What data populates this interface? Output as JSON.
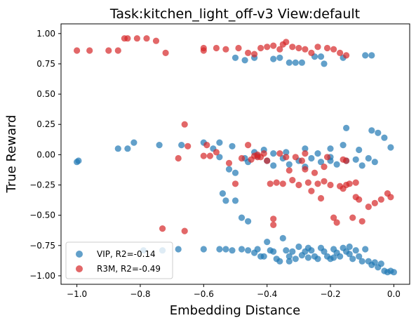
{
  "chart_data": {
    "type": "scatter",
    "title": "Task:kitchen_light_off-v3 View:default",
    "xlabel": "Embedding Distance",
    "ylabel": "True Reward",
    "xlim": [
      -1.05,
      0.05
    ],
    "ylim": [
      -1.07,
      1.08
    ],
    "xticks": [
      {
        "value": -1.0,
        "label": "−1.0"
      },
      {
        "value": -0.8,
        "label": "−0.8"
      },
      {
        "value": -0.6,
        "label": "−0.6"
      },
      {
        "value": -0.4,
        "label": "−0.4"
      },
      {
        "value": -0.2,
        "label": "−0.2"
      },
      {
        "value": 0.0,
        "label": "0.0"
      }
    ],
    "yticks": [
      {
        "value": 1.0,
        "label": "1.00"
      },
      {
        "value": 0.75,
        "label": "0.75"
      },
      {
        "value": 0.5,
        "label": "0.50"
      },
      {
        "value": 0.25,
        "label": "0.25"
      },
      {
        "value": 0.0,
        "label": "0.00"
      },
      {
        "value": -0.25,
        "label": "−0.25"
      },
      {
        "value": -0.5,
        "label": "−0.50"
      },
      {
        "value": -0.75,
        "label": "−0.75"
      },
      {
        "value": -1.0,
        "label": "−1.00"
      }
    ],
    "grid": false,
    "legend_position": "lower-left",
    "series": [
      {
        "name": "VIP, R2=-0.14",
        "color": "#1f77b4",
        "points": [
          [
            -1.0,
            -0.06
          ],
          [
            -0.995,
            -0.05
          ],
          [
            -0.87,
            0.05
          ],
          [
            -0.84,
            0.05
          ],
          [
            -0.82,
            0.1
          ],
          [
            -0.74,
            0.08
          ],
          [
            -0.67,
            0.08
          ],
          [
            -0.6,
            0.1
          ],
          [
            -0.57,
            0.05
          ],
          [
            -0.55,
            0.1
          ],
          [
            -0.51,
            0.07
          ],
          [
            -0.44,
            0.02
          ],
          [
            -0.41,
            0.04
          ],
          [
            -0.38,
            0.01
          ],
          [
            -0.34,
            0.02
          ],
          [
            -0.28,
            0.05
          ],
          [
            -0.24,
            0.01
          ],
          [
            -0.2,
            0.05
          ],
          [
            -0.16,
            0.08
          ],
          [
            -0.15,
            0.22
          ],
          [
            -0.11,
            0.04
          ],
          [
            -0.07,
            0.2
          ],
          [
            -0.05,
            0.18
          ],
          [
            -0.03,
            0.14
          ],
          [
            -0.01,
            0.06
          ],
          [
            -0.55,
            -0.02
          ],
          [
            -0.52,
            -0.12
          ],
          [
            -0.5,
            -0.15
          ],
          [
            -0.47,
            -0.03
          ],
          [
            -0.46,
            -0.06
          ],
          [
            -0.43,
            -0.01
          ],
          [
            -0.4,
            -0.05
          ],
          [
            -0.38,
            -0.09
          ],
          [
            -0.35,
            -0.03
          ],
          [
            -0.33,
            -0.08
          ],
          [
            -0.3,
            -0.05
          ],
          [
            -0.28,
            -0.1
          ],
          [
            -0.26,
            -0.03
          ],
          [
            -0.23,
            -0.06
          ],
          [
            -0.2,
            -0.02
          ],
          [
            -0.18,
            -0.08
          ],
          [
            -0.15,
            -0.05
          ],
          [
            -0.12,
            -0.04
          ],
          [
            -0.1,
            -0.09
          ],
          [
            -0.08,
            -0.03
          ],
          [
            -0.06,
            -0.06
          ],
          [
            -0.54,
            -0.32
          ],
          [
            -0.53,
            -0.38
          ],
          [
            -0.5,
            -0.38
          ],
          [
            -0.48,
            -0.52
          ],
          [
            -0.46,
            -0.55
          ],
          [
            -0.2,
            -0.05
          ],
          [
            -0.5,
            0.8
          ],
          [
            -0.47,
            0.78
          ],
          [
            -0.44,
            0.8
          ],
          [
            -0.38,
            0.79
          ],
          [
            -0.36,
            0.8
          ],
          [
            -0.33,
            0.76
          ],
          [
            -0.31,
            0.76
          ],
          [
            -0.29,
            0.76
          ],
          [
            -0.25,
            0.81
          ],
          [
            -0.23,
            0.81
          ],
          [
            -0.22,
            0.75
          ],
          [
            -0.16,
            0.8
          ],
          [
            -0.09,
            0.82
          ],
          [
            -0.07,
            0.82
          ],
          [
            -0.79,
            -0.79
          ],
          [
            -0.73,
            -0.79
          ],
          [
            -0.68,
            -0.78
          ],
          [
            -0.6,
            -0.78
          ],
          [
            -0.55,
            -0.78
          ],
          [
            -0.53,
            -0.78
          ],
          [
            -0.51,
            -0.79
          ],
          [
            -0.48,
            -0.78
          ],
          [
            -0.43,
            -0.78
          ],
          [
            -0.42,
            -0.84
          ],
          [
            -0.41,
            -0.84
          ],
          [
            -0.4,
            -0.72
          ],
          [
            -0.39,
            -0.79
          ],
          [
            -0.38,
            -0.8
          ],
          [
            -0.37,
            -0.86
          ],
          [
            -0.36,
            -0.88
          ],
          [
            -0.35,
            -0.69
          ],
          [
            -0.34,
            -0.79
          ],
          [
            -0.33,
            -0.84
          ],
          [
            -0.32,
            -0.8
          ],
          [
            -0.31,
            -0.86
          ],
          [
            -0.3,
            -0.76
          ],
          [
            -0.29,
            -0.83
          ],
          [
            -0.28,
            -0.8
          ],
          [
            -0.27,
            -0.85
          ],
          [
            -0.26,
            -0.79
          ],
          [
            -0.25,
            -0.84
          ],
          [
            -0.24,
            -0.86
          ],
          [
            -0.23,
            -0.77
          ],
          [
            -0.22,
            -0.8
          ],
          [
            -0.21,
            -0.84
          ],
          [
            -0.2,
            -0.86
          ],
          [
            -0.19,
            -0.78
          ],
          [
            -0.18,
            -0.81
          ],
          [
            -0.17,
            -0.84
          ],
          [
            -0.16,
            -0.77
          ],
          [
            -0.15,
            -0.8
          ],
          [
            -0.14,
            -0.82
          ],
          [
            -0.13,
            -0.86
          ],
          [
            -0.12,
            -0.79
          ],
          [
            -0.11,
            -0.84
          ],
          [
            -0.1,
            -0.88
          ],
          [
            -0.09,
            -0.78
          ],
          [
            -0.08,
            -0.88
          ],
          [
            -0.07,
            -0.91
          ],
          [
            -0.06,
            -0.89
          ],
          [
            -0.05,
            -0.93
          ],
          [
            -0.04,
            -0.9
          ],
          [
            -0.03,
            -0.96
          ],
          [
            -0.02,
            -0.97
          ],
          [
            -0.01,
            -0.96
          ],
          [
            0.0,
            -0.97
          ],
          [
            -0.46,
            -0.79
          ],
          [
            -0.44,
            -0.81
          ],
          [
            -0.33,
            -0.88
          ],
          [
            -0.27,
            -0.77
          ],
          [
            -0.19,
            -0.85
          ],
          [
            -0.14,
            -0.76
          ]
        ]
      },
      {
        "name": "R3M, R2=-0.49",
        "color": "#d62728",
        "points": [
          [
            -1.0,
            0.86
          ],
          [
            -0.96,
            0.86
          ],
          [
            -0.9,
            0.86
          ],
          [
            -0.87,
            0.86
          ],
          [
            -0.85,
            0.96
          ],
          [
            -0.84,
            0.96
          ],
          [
            -0.81,
            0.96
          ],
          [
            -0.78,
            0.96
          ],
          [
            -0.75,
            0.94
          ],
          [
            -0.72,
            0.84
          ],
          [
            -0.6,
            0.88
          ],
          [
            -0.6,
            0.86
          ],
          [
            -0.56,
            0.88
          ],
          [
            -0.53,
            0.87
          ],
          [
            -0.49,
            0.88
          ],
          [
            -0.46,
            0.84
          ],
          [
            -0.44,
            0.83
          ],
          [
            -0.42,
            0.88
          ],
          [
            -0.4,
            0.89
          ],
          [
            -0.38,
            0.9
          ],
          [
            -0.36,
            0.87
          ],
          [
            -0.35,
            0.91
          ],
          [
            -0.34,
            0.93
          ],
          [
            -0.32,
            0.89
          ],
          [
            -0.3,
            0.88
          ],
          [
            -0.28,
            0.87
          ],
          [
            -0.26,
            0.84
          ],
          [
            -0.24,
            0.89
          ],
          [
            -0.21,
            0.88
          ],
          [
            -0.19,
            0.87
          ],
          [
            -0.17,
            0.84
          ],
          [
            -0.15,
            0.82
          ],
          [
            -0.73,
            -0.61
          ],
          [
            -0.66,
            -0.63
          ],
          [
            -0.68,
            -0.03
          ],
          [
            -0.66,
            0.25
          ],
          [
            -0.65,
            0.07
          ],
          [
            -0.6,
            -0.01
          ],
          [
            -0.59,
            0.08
          ],
          [
            -0.58,
            -0.01
          ],
          [
            -0.56,
            0.02
          ],
          [
            -0.52,
            -0.07
          ],
          [
            -0.5,
            -0.24
          ],
          [
            -0.48,
            -0.03
          ],
          [
            -0.46,
            0.08
          ],
          [
            -0.44,
            -0.01
          ],
          [
            -0.43,
            0.0
          ],
          [
            -0.42,
            -0.02
          ],
          [
            -0.41,
            0.01
          ],
          [
            -0.4,
            -0.05
          ],
          [
            -0.39,
            -0.24
          ],
          [
            -0.38,
            -0.53
          ],
          [
            -0.38,
            -0.58
          ],
          [
            -0.37,
            -0.23
          ],
          [
            -0.36,
            0.01
          ],
          [
            -0.35,
            -0.24
          ],
          [
            -0.34,
            -0.02
          ],
          [
            -0.33,
            -0.13
          ],
          [
            -0.32,
            -0.21
          ],
          [
            -0.31,
            -0.02
          ],
          [
            -0.3,
            -0.25
          ],
          [
            -0.29,
            -0.05
          ],
          [
            -0.28,
            -0.12
          ],
          [
            -0.27,
            -0.23
          ],
          [
            -0.26,
            -0.3
          ],
          [
            -0.25,
            -0.15
          ],
          [
            -0.24,
            -0.24
          ],
          [
            -0.23,
            -0.36
          ],
          [
            -0.22,
            -0.1
          ],
          [
            -0.21,
            -0.02
          ],
          [
            -0.2,
            -0.25
          ],
          [
            -0.19,
            -0.52
          ],
          [
            -0.18,
            -0.56
          ],
          [
            -0.17,
            -0.26
          ],
          [
            -0.16,
            -0.28
          ],
          [
            -0.15,
            -0.25
          ],
          [
            -0.14,
            -0.24
          ],
          [
            -0.13,
            -0.52
          ],
          [
            -0.12,
            -0.35
          ],
          [
            -0.11,
            -0.37
          ],
          [
            -0.1,
            -0.55
          ],
          [
            -0.08,
            -0.43
          ],
          [
            -0.06,
            -0.4
          ],
          [
            -0.04,
            -0.37
          ],
          [
            -0.02,
            -0.32
          ],
          [
            -0.01,
            -0.35
          ],
          [
            -0.45,
            -0.04
          ],
          [
            -0.43,
            -0.02
          ],
          [
            -0.28,
            0.01
          ],
          [
            -0.22,
            -0.22
          ],
          [
            -0.16,
            -0.04
          ],
          [
            -0.12,
            -0.23
          ],
          [
            -0.15,
            -0.05
          ]
        ]
      }
    ]
  }
}
